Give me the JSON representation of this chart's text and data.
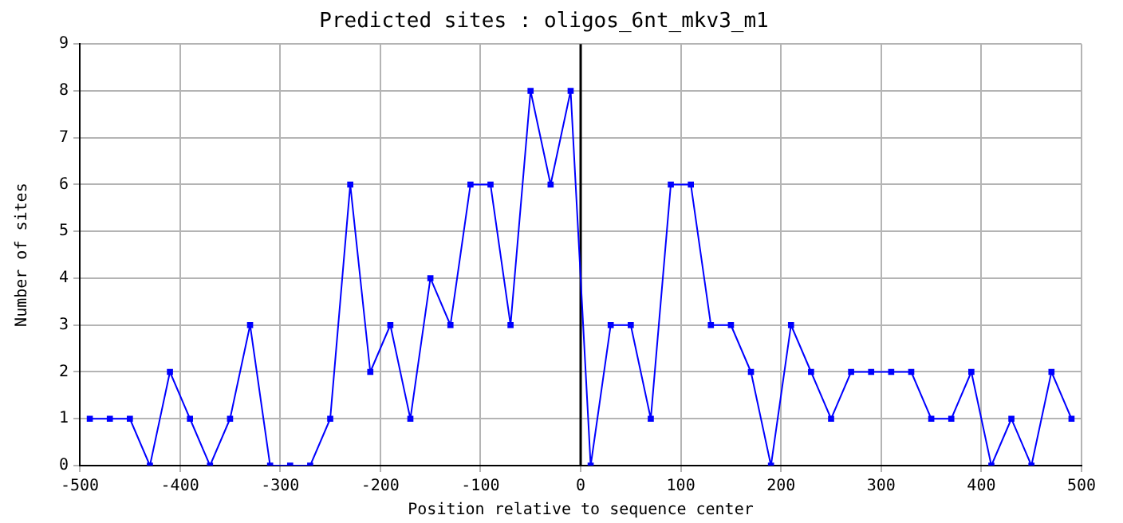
{
  "chart_data": {
    "type": "line",
    "title": "Predicted sites : oligos_6nt_mkv3_m1",
    "xlabel": "Position relative to sequence center",
    "ylabel": "Number of sites",
    "x": [
      -490,
      -470,
      -450,
      -430,
      -410,
      -390,
      -370,
      -350,
      -330,
      -310,
      -290,
      -270,
      -250,
      -230,
      -210,
      -190,
      -170,
      -150,
      -130,
      -110,
      -90,
      -70,
      -50,
      -30,
      -10,
      10,
      30,
      50,
      70,
      90,
      110,
      130,
      150,
      170,
      190,
      210,
      230,
      250,
      270,
      290,
      310,
      330,
      350,
      370,
      390,
      410,
      430,
      450,
      470,
      490
    ],
    "series": [
      {
        "color": "#0000ff",
        "values": [
          1,
          1,
          1,
          0,
          2,
          1,
          0,
          1,
          3,
          0,
          0,
          0,
          1,
          6,
          2,
          3,
          1,
          4,
          3,
          6,
          6,
          3,
          8,
          6,
          8,
          0,
          3,
          3,
          1,
          6,
          6,
          3,
          3,
          2,
          0,
          3,
          2,
          1,
          2,
          2,
          2,
          2,
          1,
          1,
          2,
          0,
          1,
          0,
          2,
          1
        ]
      }
    ],
    "xlim": [
      -500,
      500
    ],
    "xticks": [
      -500,
      -400,
      -300,
      -200,
      -100,
      0,
      100,
      200,
      300,
      400,
      500
    ],
    "ylim": [
      0,
      9
    ],
    "yticks": [
      0,
      1,
      2,
      3,
      4,
      5,
      6,
      7,
      8,
      9
    ],
    "grid": true,
    "legend": false,
    "marker": "square",
    "line_style": "solid",
    "ref_lines": [
      {
        "axis": "x",
        "value": 0,
        "color": "#000000"
      }
    ]
  }
}
